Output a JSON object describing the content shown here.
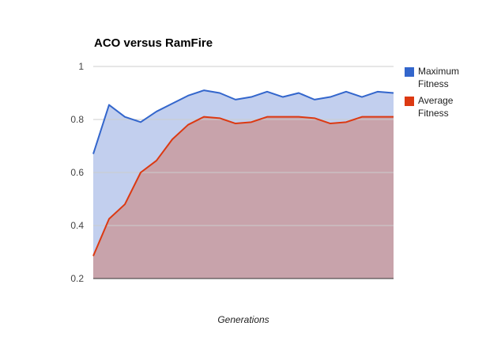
{
  "chart_data": {
    "type": "area",
    "title": "ACO versus RamFire",
    "xlabel": "Generations",
    "ylabel": "",
    "ylim": [
      0.2,
      1.0
    ],
    "yticks": [
      "0.2",
      "0.4",
      "0.6",
      "0.8",
      "1"
    ],
    "x": [
      1,
      2,
      3,
      4,
      5,
      6,
      7,
      8,
      9,
      10,
      11,
      12,
      13,
      14,
      15,
      16,
      17,
      18,
      19,
      20
    ],
    "series": [
      {
        "name": "Maximum Fitness",
        "color": "#3366cc",
        "fill": "#c2cfee",
        "values": [
          0.67,
          0.855,
          0.81,
          0.79,
          0.83,
          0.86,
          0.89,
          0.91,
          0.9,
          0.875,
          0.885,
          0.905,
          0.885,
          0.9,
          0.875,
          0.885,
          0.905,
          0.885,
          0.905,
          0.9
        ]
      },
      {
        "name": "Average Fitness",
        "color": "#dc3912",
        "fill": "#c8a3ab",
        "values": [
          0.285,
          0.425,
          0.48,
          0.6,
          0.645,
          0.725,
          0.78,
          0.81,
          0.805,
          0.785,
          0.79,
          0.81,
          0.81,
          0.81,
          0.805,
          0.785,
          0.79,
          0.81,
          0.81,
          0.81
        ]
      }
    ],
    "grid": true,
    "legend": "right"
  }
}
